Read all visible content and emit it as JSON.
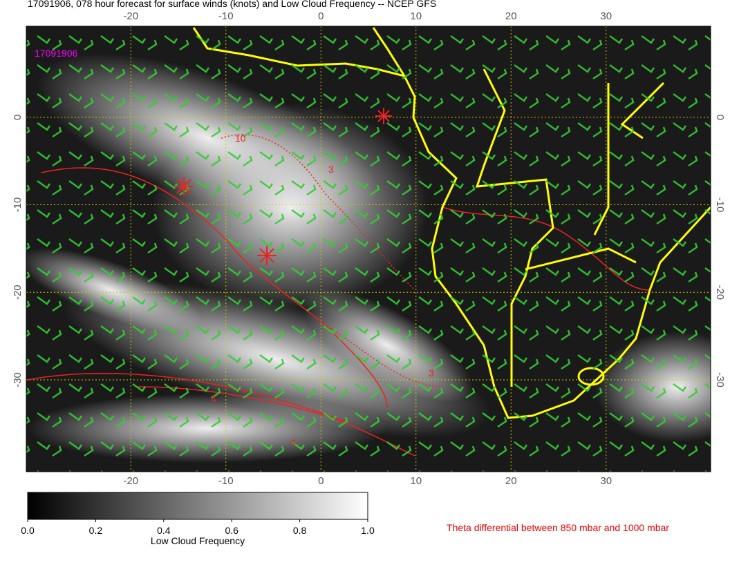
{
  "header": {
    "title": "17091906, 078 hour forecast for surface winds (knots) and Low Cloud Frequency -- NCEP GFS",
    "stamp": "17091906"
  },
  "map": {
    "xlim": [
      -31,
      41
    ],
    "ylim": [
      -40.5,
      10.4
    ],
    "xticks": [
      -20,
      -10,
      0,
      10,
      20,
      30
    ],
    "yticks": [
      0,
      -10,
      -20,
      -30
    ],
    "contour_labels": [
      "10",
      "3",
      "3",
      "4",
      "4"
    ]
  },
  "colorbar": {
    "label": "Low Cloud Frequency",
    "lim": [
      0,
      1
    ],
    "ticks": [
      {
        "value": 0,
        "label": "0.0"
      },
      {
        "value": 0.2,
        "label": "0.2"
      },
      {
        "value": 0.4,
        "label": "0.4"
      },
      {
        "value": 0.6,
        "label": "0.6"
      },
      {
        "value": 0.8,
        "label": "0.8"
      },
      {
        "value": 1,
        "label": "1.0"
      }
    ]
  },
  "note": "Theta differential between 850 mbar and 1000 mbar"
}
